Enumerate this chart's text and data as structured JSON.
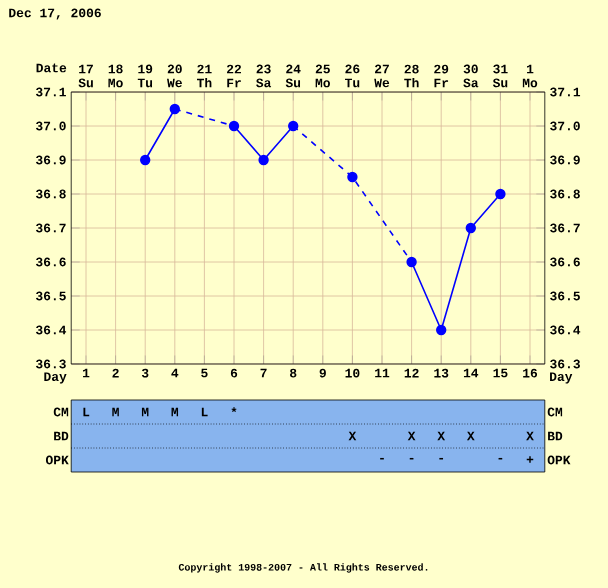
{
  "chart_data": [
    {
      "type": "line",
      "title": "Dec 17, 2006",
      "xlabel": "Day",
      "x2label": "Date",
      "x": [
        3,
        4,
        5,
        6,
        7,
        8,
        9,
        10,
        11,
        12,
        13,
        14,
        15
      ],
      "xlim": [
        0.5,
        16.5
      ],
      "xticks": [
        1,
        2,
        3,
        4,
        5,
        6,
        7,
        8,
        9,
        10,
        11,
        12,
        13,
        14,
        15,
        16
      ],
      "x2lim": [
        "2006-12-16T12:00",
        "2007-01-01T12:00"
      ],
      "x2ticks": [
        {
          "value": "2006-12-17",
          "label": "17 Su"
        },
        {
          "value": "2006-12-18",
          "label": "18 Mo"
        },
        {
          "value": "2006-12-19",
          "label": "19 Tu"
        },
        {
          "value": "2006-12-20",
          "label": "20 We"
        },
        {
          "value": "2006-12-21",
          "label": "21 Th"
        },
        {
          "value": "2006-12-22",
          "label": "22 Fr"
        },
        {
          "value": "2006-12-23",
          "label": "23 Sa"
        },
        {
          "value": "2006-12-24",
          "label": "24 Su"
        },
        {
          "value": "2006-12-25",
          "label": "25 Mo"
        },
        {
          "value": "2006-12-26",
          "label": "26 Tu"
        },
        {
          "value": "2006-12-27",
          "label": "27 We"
        },
        {
          "value": "2006-12-28",
          "label": "28 Th"
        },
        {
          "value": "2006-12-29",
          "label": "29 Fr"
        },
        {
          "value": "2006-12-30",
          "label": "30 Sa"
        },
        {
          "value": "2006-12-31",
          "label": "31 Su"
        },
        {
          "value": "2007-01-01",
          "label": "1 Mo"
        }
      ],
      "ylim": [
        36.3,
        37.1
      ],
      "yticks": [
        36.3,
        36.4,
        36.5,
        36.6,
        36.7,
        36.8,
        36.9,
        {
          "value": 37.0,
          "label": "37.0"
        },
        37.1
      ],
      "y2lim": [
        36.3,
        37.1
      ],
      "y2ticks": [
        36.3,
        36.4,
        36.5,
        36.6,
        36.7,
        36.8,
        36.9,
        {
          "value": 37.0,
          "label": "37.0"
        },
        37.1
      ],
      "grid": true,
      "marker": "circle",
      "series": [
        {
          "color": "#0000ff",
          "line_style": "dashed",
          "x": [
            4,
            6
          ],
          "values": [
            37.05,
            37.0
          ]
        },
        {
          "color": "#0000ff",
          "line_style": "dashed",
          "x": [
            8,
            10,
            12
          ],
          "values": [
            37.0,
            36.85,
            36.6
          ]
        },
        {
          "color": "#0000ff",
          "line_style": "solid",
          "values": [
            36.9,
            37.05,
            null,
            37.0,
            36.9,
            37.0,
            null,
            36.85,
            null,
            36.6,
            36.4,
            36.7,
            36.8
          ]
        }
      ],
      "annotations": [
        "Copyright 1998-2007 - All Rights Reserved."
      ]
    },
    {
      "type": "heatmap",
      "categories": [
        null,
        null,
        null,
        null,
        null,
        null,
        null,
        null,
        null,
        null,
        null,
        null,
        null,
        null,
        null,
        null
      ],
      "y_categories": [
        "CM",
        "BD",
        "OPK"
      ],
      "y2_categories": [
        "CM",
        "BD",
        "OPK"
      ],
      "cells": [
        [
          null,
          null,
          null,
          null,
          null,
          null,
          null,
          null,
          null,
          null,
          null,
          null,
          null,
          null,
          null,
          null
        ],
        [
          null,
          null,
          null,
          null,
          null,
          null,
          null,
          null,
          null,
          null,
          null,
          null,
          null,
          null,
          null,
          null
        ],
        [
          null,
          null,
          null,
          null,
          null,
          null,
          null,
          null,
          null,
          null,
          null,
          null,
          null,
          null,
          null,
          null
        ]
      ],
      "cell_labels": [
        [
          "L",
          "M",
          "M",
          "M",
          "L",
          "*",
          null,
          null,
          null,
          null,
          null,
          null,
          null,
          null,
          null,
          null
        ],
        [
          null,
          null,
          null,
          null,
          null,
          null,
          null,
          null,
          null,
          "X",
          null,
          "X",
          "X",
          "X",
          null,
          "X"
        ],
        [
          null,
          null,
          null,
          null,
          null,
          null,
          null,
          null,
          null,
          null,
          "-",
          "-",
          "-",
          null,
          "-",
          "+"
        ]
      ]
    }
  ]
}
